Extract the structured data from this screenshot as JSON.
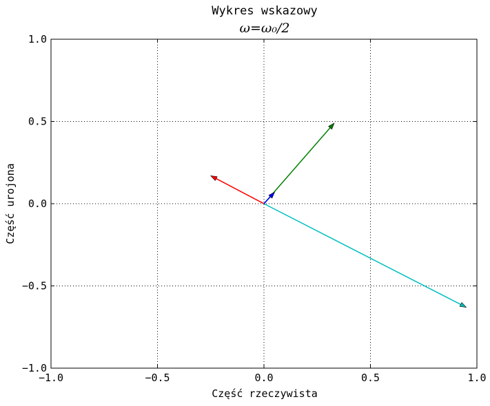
{
  "chart_data": {
    "type": "phasor",
    "title": "Wykres wskazowy",
    "subtitle": "ω=ω₀/2",
    "xlabel": "Część rzeczywista",
    "ylabel": "Część urojona",
    "xlim": [
      -1.0,
      1.0
    ],
    "ylim": [
      -1.0,
      1.0
    ],
    "grid": true,
    "xticks": [
      -1.0,
      -0.5,
      0.0,
      0.5,
      1.0
    ],
    "xtick_labels": [
      "−1.0",
      "−0.5",
      "0.0",
      "0.5",
      "1.0"
    ],
    "yticks": [
      -1.0,
      -0.5,
      0.0,
      0.5,
      1.0
    ],
    "ytick_labels": [
      "−1.0",
      "−0.5",
      "0.0",
      "0.5",
      "1.0"
    ],
    "vectors": [
      {
        "color": "#00bfbf",
        "x0": 0.0,
        "y0": 0.0,
        "x1": 0.95,
        "y1": -0.63
      },
      {
        "color": "#ff0000",
        "x0": 0.0,
        "y0": 0.0,
        "x1": -0.25,
        "y1": 0.17
      },
      {
        "color": "#008000",
        "x0": 0.0,
        "y0": 0.0,
        "x1": 0.33,
        "y1": 0.49
      },
      {
        "color": "#0000ff",
        "x0": 0.0,
        "y0": 0.0,
        "x1": 0.05,
        "y1": 0.07
      }
    ]
  }
}
